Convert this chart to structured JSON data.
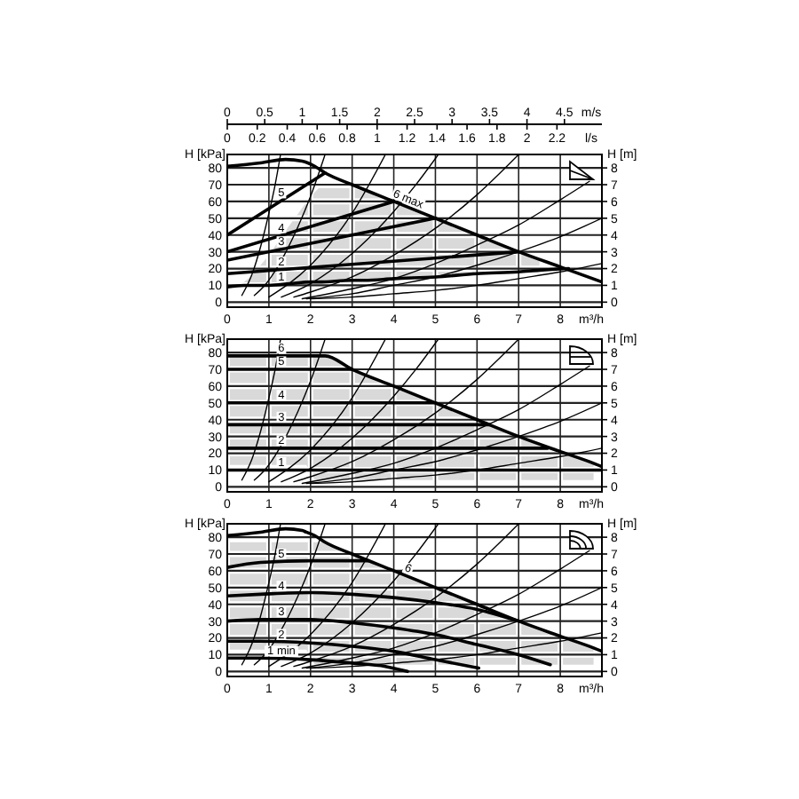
{
  "chart_data": [
    {
      "type": "line",
      "xlabel": "m³/h",
      "ylabel": "H [kPa]",
      "y2label": "H [m]",
      "x2label": "m/s",
      "xlim": [
        0,
        9
      ],
      "xticks": [
        0,
        1,
        2,
        3,
        4,
        5,
        6,
        7,
        8
      ],
      "ylim": [
        -3,
        88
      ],
      "yticks": [
        0,
        10,
        20,
        30,
        40,
        50,
        60,
        70,
        80
      ],
      "y2lim": [
        -0.3,
        8.8
      ],
      "y2ticks": [
        0,
        1,
        2,
        3,
        4,
        5,
        6,
        7,
        8
      ],
      "x2lim": [
        0,
        5
      ],
      "x2ticks": [
        0,
        0.5,
        1,
        1.5,
        2,
        2.5,
        3,
        3.5,
        4,
        4.5
      ],
      "grid": true,
      "annotations": [
        "0",
        "0.2",
        "0.4",
        "0.6",
        "0.8",
        "1",
        "1.2",
        "1.4",
        "1.6",
        "1.8",
        "2",
        "2.2",
        "l/s"
      ],
      "series": [
        {
          "color": "#000000",
          "x": [
            0.35,
            0.6,
            0.8,
            1.0,
            1.15,
            1.28
          ],
          "values": [
            4,
            17,
            33,
            53,
            70,
            88
          ]
        },
        {
          "color": "#000000",
          "x": [
            0.65,
            0.9,
            1.7,
            2.0,
            2.35
          ],
          "values": [
            4,
            10,
            45,
            63,
            88
          ]
        },
        {
          "color": "#000000",
          "x": [
            1,
            2,
            3,
            3.8
          ],
          "values": [
            3,
            22,
            53,
            88
          ]
        },
        {
          "color": "#000000",
          "x": [
            1.3,
            2,
            3,
            4,
            4.5,
            5.07
          ],
          "values": [
            3,
            11,
            29,
            54,
            69,
            88
          ]
        },
        {
          "color": "#000000",
          "x": [
            1.6,
            2,
            3,
            4,
            5,
            6,
            7
          ],
          "values": [
            3,
            6,
            15,
            28,
            44,
            64,
            88
          ]
        },
        {
          "color": "#000000",
          "x": [
            1.8,
            3,
            4,
            5,
            6,
            7,
            8,
            8.7
          ],
          "values": [
            2,
            8,
            14,
            23,
            34,
            46,
            61,
            72
          ]
        },
        {
          "color": "#000000",
          "x": [
            1.9,
            3,
            4,
            5,
            6,
            7,
            8,
            9
          ],
          "values": [
            2,
            5,
            10,
            15,
            22,
            30,
            39,
            50
          ]
        },
        {
          "color": "#000000",
          "x": [
            2,
            3,
            4,
            5,
            6,
            7,
            8,
            9
          ],
          "values": [
            2,
            3,
            5,
            7,
            10,
            14,
            18,
            23
          ]
        },
        {
          "name": "1",
          "color": "#000000",
          "x": [
            0,
            0.4,
            0.6,
            1,
            1.5,
            2,
            2.2,
            3,
            3.3,
            4,
            5,
            6,
            7,
            7.5,
            8.2
          ],
          "values": [
            9,
            10,
            10,
            10,
            11,
            12,
            12,
            13,
            13,
            14,
            15,
            17,
            18,
            19,
            20
          ],
          "lower": [
            null,
            10,
            10,
            10,
            11,
            12,
            12,
            13,
            13,
            14,
            15,
            17,
            18,
            19,
            null
          ],
          "upper": [
            null,
            12,
            16,
            28,
            46,
            63,
            68,
            68,
            66,
            60,
            50,
            40,
            30,
            25,
            null
          ]
        },
        {
          "name": "2",
          "color": "#000000",
          "x": [
            0,
            7
          ],
          "values": [
            17,
            30
          ]
        },
        {
          "name": "3",
          "color": "#000000",
          "x": [
            0,
            5
          ],
          "values": [
            25,
            50
          ]
        },
        {
          "name": "4",
          "color": "#000000",
          "x": [
            0,
            4
          ],
          "values": [
            30,
            60
          ]
        },
        {
          "name": "5",
          "color": "#000000",
          "x": [
            0,
            2.35
          ],
          "values": [
            40,
            77
          ]
        },
        {
          "name": "6 max",
          "color": "#000000",
          "x": [
            0,
            0.8,
            1.4,
            1.8,
            2.1,
            2.35,
            3,
            4,
            5,
            6,
            7,
            8,
            9
          ],
          "values": [
            81,
            83,
            85,
            84,
            81,
            77,
            70,
            60,
            50,
            40,
            30,
            21,
            12
          ]
        }
      ]
    },
    {
      "type": "line",
      "xlabel": "m³/h",
      "ylabel": "H [kPa]",
      "y2label": "H [m]",
      "xlim": [
        0,
        9
      ],
      "xticks": [
        0,
        1,
        2,
        3,
        4,
        5,
        6,
        7,
        8
      ],
      "ylim": [
        -3,
        88
      ],
      "yticks": [
        0,
        10,
        20,
        30,
        40,
        50,
        60,
        70,
        80
      ],
      "y2lim": [
        -0.3,
        8.8
      ],
      "y2ticks": [
        0,
        1,
        2,
        3,
        4,
        5,
        6,
        7,
        8
      ],
      "grid": true,
      "series": [
        {
          "color": "#000000",
          "x": [
            0.35,
            0.6,
            0.8,
            1.0,
            1.15,
            1.28
          ],
          "values": [
            4,
            17,
            33,
            53,
            70,
            88
          ]
        },
        {
          "color": "#000000",
          "x": [
            0.65,
            0.9,
            1.7,
            2.0,
            2.35
          ],
          "values": [
            4,
            10,
            45,
            63,
            88
          ]
        },
        {
          "color": "#000000",
          "x": [
            1,
            2,
            3,
            3.8
          ],
          "values": [
            3,
            22,
            53,
            88
          ]
        },
        {
          "color": "#000000",
          "x": [
            1.3,
            2,
            3,
            4,
            4.5,
            5.07
          ],
          "values": [
            3,
            11,
            29,
            54,
            69,
            88
          ]
        },
        {
          "color": "#000000",
          "x": [
            1.6,
            2,
            3,
            4,
            5,
            6,
            7
          ],
          "values": [
            3,
            6,
            15,
            28,
            44,
            64,
            88
          ]
        },
        {
          "color": "#000000",
          "x": [
            1.8,
            3,
            4,
            5,
            6,
            7,
            8,
            8.7
          ],
          "values": [
            2,
            8,
            14,
            23,
            34,
            46,
            61,
            72
          ]
        },
        {
          "color": "#000000",
          "x": [
            1.9,
            3,
            4,
            5,
            6,
            7,
            8,
            9
          ],
          "values": [
            2,
            5,
            10,
            15,
            22,
            30,
            39,
            50
          ]
        },
        {
          "color": "#000000",
          "x": [
            2,
            3,
            4,
            5,
            6,
            7,
            8,
            9
          ],
          "values": [
            2,
            3,
            5,
            7,
            10,
            14,
            18,
            23
          ]
        },
        {
          "name": "1",
          "color": "#000000",
          "x": [
            0,
            9
          ],
          "values": [
            10,
            10
          ]
        },
        {
          "name": "2",
          "color": "#000000",
          "x": [
            0,
            7.7
          ],
          "values": [
            23,
            23
          ]
        },
        {
          "name": "3",
          "color": "#000000",
          "x": [
            0,
            6.3
          ],
          "values": [
            37,
            37
          ]
        },
        {
          "name": "4",
          "color": "#000000",
          "x": [
            0,
            5
          ],
          "values": [
            50,
            50
          ]
        },
        {
          "name": "5",
          "color": "#000000",
          "x": [
            0,
            3
          ],
          "values": [
            70,
            70
          ]
        },
        {
          "name": "6",
          "color": "#000000",
          "x": [
            0,
            1.9,
            2.1,
            2.35,
            3,
            4,
            5,
            6,
            7,
            8,
            8.8,
            9
          ],
          "values": [
            78,
            78,
            78,
            78,
            70,
            60,
            50,
            40,
            30,
            21,
            14,
            12
          ],
          "lower": [
            13,
            13,
            4,
            4,
            4,
            4,
            4,
            4,
            4,
            4,
            4,
            null
          ],
          "upper": [
            78,
            78,
            78,
            78,
            70,
            60,
            50,
            40,
            30,
            21,
            14,
            null
          ]
        }
      ]
    },
    {
      "type": "line",
      "xlabel": "m³/h",
      "ylabel": "H [kPa]",
      "y2label": "H [m]",
      "xlim": [
        0,
        9
      ],
      "xticks": [
        0,
        1,
        2,
        3,
        4,
        5,
        6,
        7,
        8
      ],
      "ylim": [
        -3,
        88
      ],
      "yticks": [
        0,
        10,
        20,
        30,
        40,
        50,
        60,
        70,
        80
      ],
      "y2lim": [
        -0.3,
        8.8
      ],
      "y2ticks": [
        0,
        1,
        2,
        3,
        4,
        5,
        6,
        7,
        8
      ],
      "grid": true,
      "series": [
        {
          "color": "#000000",
          "x": [
            0.35,
            0.6,
            0.8,
            1.0,
            1.15,
            1.28
          ],
          "values": [
            4,
            17,
            33,
            53,
            70,
            88
          ]
        },
        {
          "color": "#000000",
          "x": [
            0.65,
            0.9,
            1.7,
            2.0,
            2.35
          ],
          "values": [
            4,
            10,
            45,
            63,
            88
          ]
        },
        {
          "color": "#000000",
          "x": [
            1,
            2,
            3,
            3.8
          ],
          "values": [
            3,
            22,
            53,
            88
          ]
        },
        {
          "color": "#000000",
          "x": [
            1.3,
            2,
            3,
            4,
            4.5,
            5.07
          ],
          "values": [
            3,
            11,
            29,
            54,
            69,
            88
          ]
        },
        {
          "color": "#000000",
          "x": [
            1.6,
            2,
            3,
            4,
            5,
            6,
            7
          ],
          "values": [
            3,
            6,
            15,
            28,
            44,
            64,
            88
          ]
        },
        {
          "color": "#000000",
          "x": [
            1.8,
            3,
            4,
            5,
            6,
            7,
            8,
            8.7
          ],
          "values": [
            2,
            8,
            14,
            23,
            34,
            46,
            61,
            72
          ]
        },
        {
          "color": "#000000",
          "x": [
            1.9,
            3,
            4,
            5,
            6,
            7,
            8,
            9
          ],
          "values": [
            2,
            5,
            10,
            15,
            22,
            30,
            39,
            50
          ]
        },
        {
          "color": "#000000",
          "x": [
            2,
            3,
            4,
            5,
            6,
            7,
            8,
            9
          ],
          "values": [
            2,
            3,
            5,
            7,
            10,
            14,
            18,
            23
          ]
        },
        {
          "name": "1 min",
          "color": "#000000",
          "x": [
            0,
            0.8,
            2,
            3,
            3.8,
            4.33
          ],
          "values": [
            8,
            8,
            7,
            5,
            3,
            0
          ]
        },
        {
          "name": "2",
          "color": "#000000",
          "x": [
            0,
            0.8,
            2,
            3,
            4,
            5,
            6.04
          ],
          "values": [
            18,
            18,
            17,
            15,
            12,
            7,
            2
          ]
        },
        {
          "name": "3",
          "color": "#000000",
          "x": [
            0,
            0.8,
            2,
            3,
            4,
            5,
            6,
            7,
            7.76
          ],
          "values": [
            30,
            31,
            31,
            29,
            26,
            22,
            16,
            10,
            4
          ]
        },
        {
          "name": "4",
          "color": "#000000",
          "x": [
            0,
            0.8,
            2,
            3,
            4,
            5,
            6,
            7
          ],
          "values": [
            45,
            46,
            47,
            46,
            44,
            41,
            37,
            30
          ]
        },
        {
          "name": "5",
          "color": "#000000",
          "x": [
            0,
            0.8,
            2,
            2.9,
            3.4
          ],
          "values": [
            62,
            65,
            66,
            66,
            66
          ]
        },
        {
          "name": "6",
          "color": "#000000",
          "x": [
            0,
            0.8,
            1.4,
            1.8,
            1.9,
            2.1,
            2.35,
            3,
            4,
            5,
            6,
            7,
            8,
            8.8,
            9
          ],
          "values": [
            81,
            83,
            85,
            84,
            83,
            81,
            77,
            70,
            60,
            50,
            40,
            30,
            21,
            14,
            12
          ],
          "lower": [
            13,
            13,
            13,
            13,
            13,
            4,
            4,
            4,
            4,
            4,
            4,
            4,
            4,
            4,
            null
          ],
          "upper": [
            77,
            77,
            77,
            77,
            77,
            77,
            77,
            70,
            60,
            50,
            40,
            30,
            21,
            14,
            null
          ]
        }
      ]
    }
  ]
}
